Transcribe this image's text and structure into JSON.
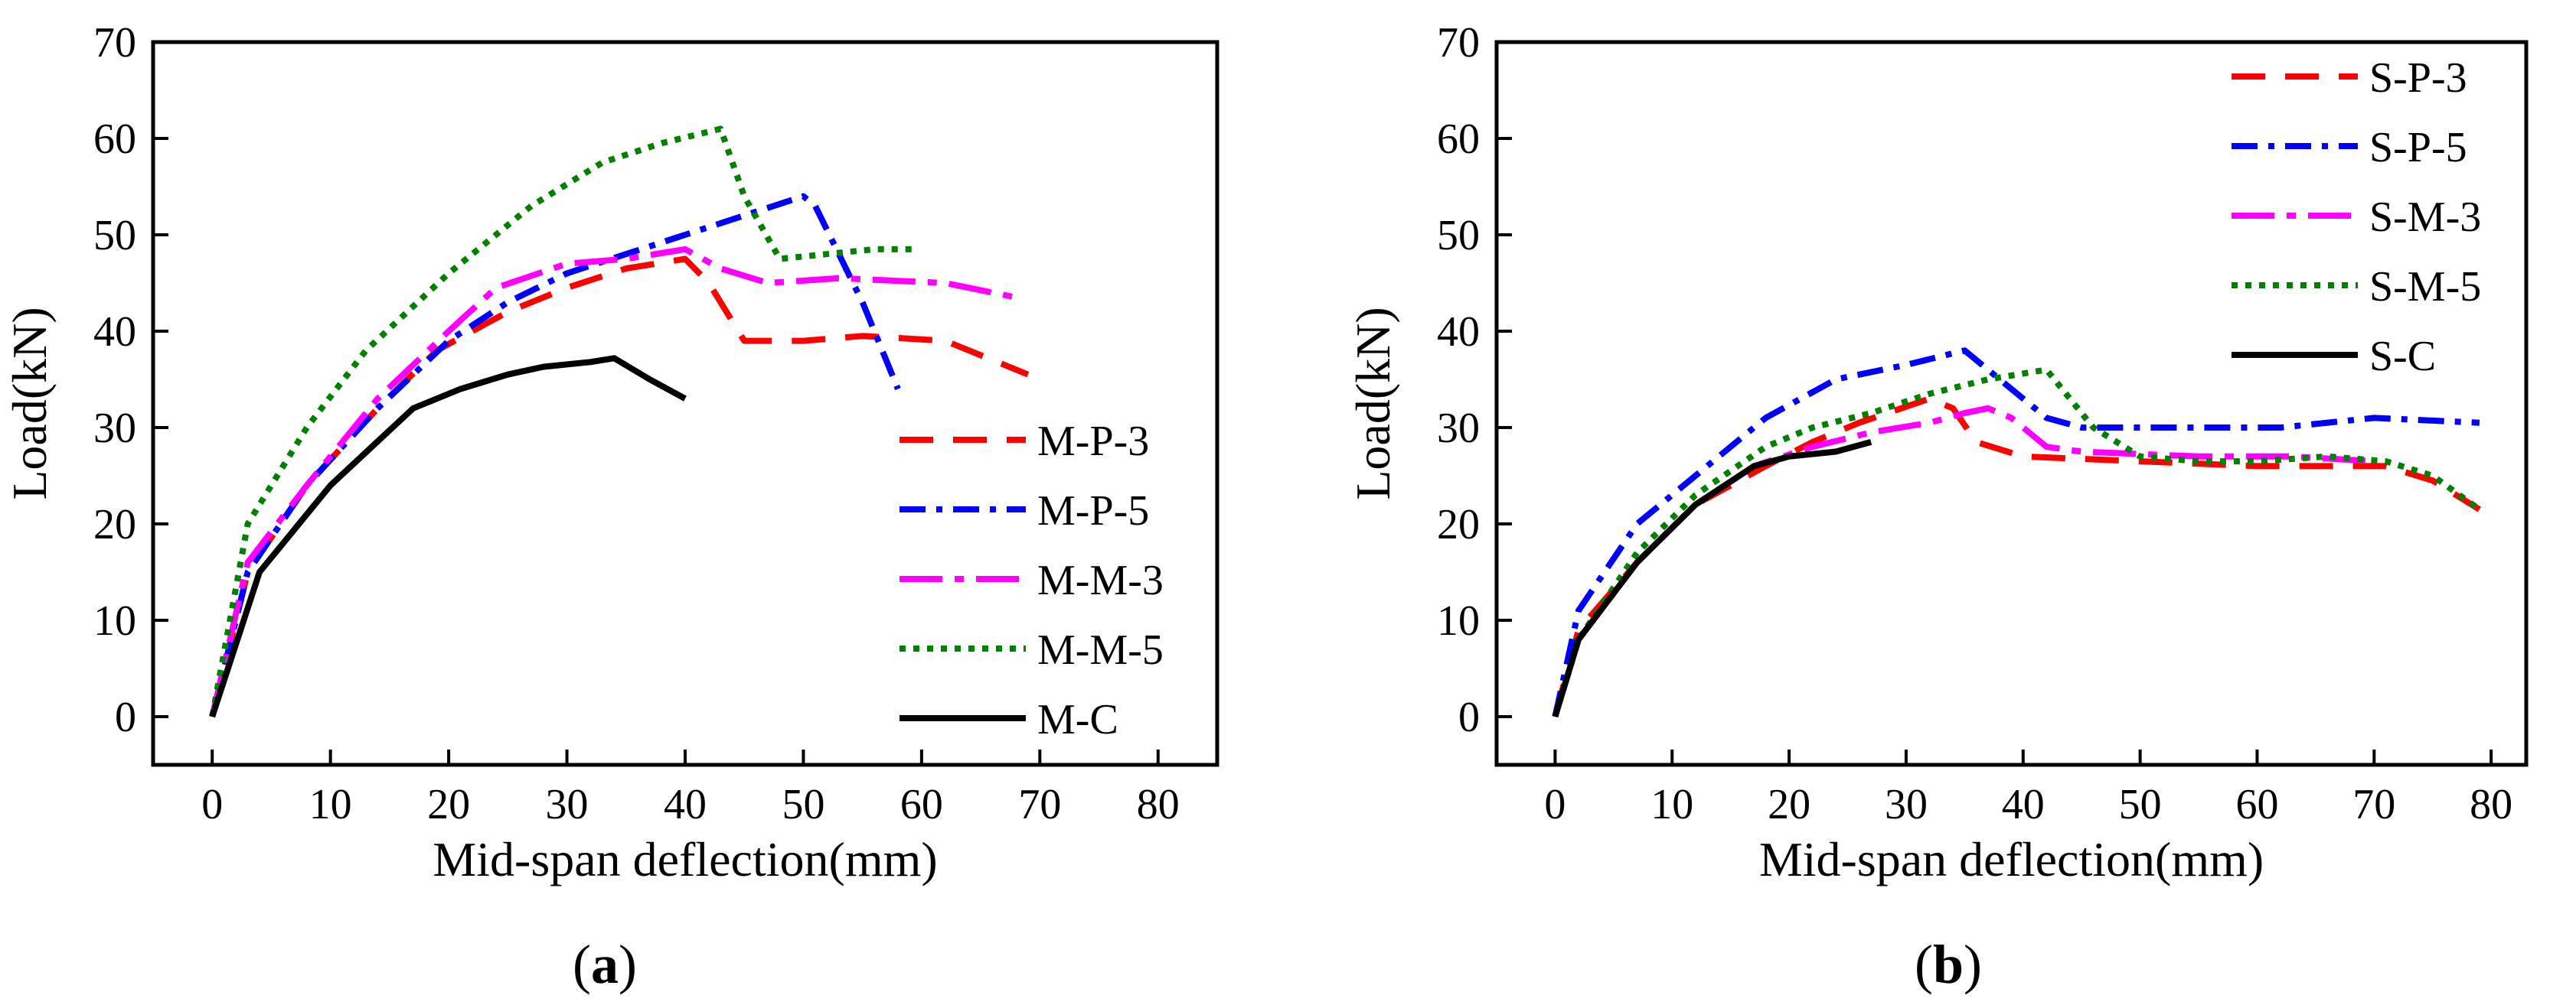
{
  "chart_data": [
    {
      "type": "line",
      "panel": "a",
      "xlabel": "Mid-span deflection(mm)",
      "ylabel": "Load(kN)",
      "xlim": [
        -5,
        85
      ],
      "ylim": [
        -5,
        70
      ],
      "xticks": [
        0,
        10,
        20,
        30,
        40,
        50,
        60,
        70,
        80
      ],
      "yticks": [
        0,
        10,
        20,
        30,
        40,
        50,
        60,
        70
      ],
      "legend_position": "lower-right",
      "series": [
        {
          "name": "M-P-3",
          "color": "#ff0000",
          "dash": "dash",
          "x": [
            0,
            3,
            8,
            14,
            19,
            25,
            30,
            35,
            40,
            42,
            45,
            50,
            55,
            62,
            66,
            69
          ],
          "y": [
            0,
            15,
            24,
            32,
            38,
            42,
            44.5,
            46.5,
            47.5,
            45,
            39,
            39,
            39.5,
            39,
            37,
            35.5
          ]
        },
        {
          "name": "M-P-5",
          "color": "#0000ff",
          "dash": "dashdot",
          "x": [
            0,
            3,
            8,
            14,
            20,
            25,
            30,
            35,
            40,
            45,
            50,
            51,
            55,
            58
          ],
          "y": [
            0,
            15,
            24,
            32,
            39,
            43,
            46,
            48,
            50,
            52,
            54,
            53,
            43,
            34
          ]
        },
        {
          "name": "M-M-3",
          "color": "#ff00ff",
          "dash": "longdashdot",
          "x": [
            0,
            3,
            8,
            14,
            20,
            24,
            30,
            35,
            40,
            43,
            47,
            53,
            62,
            68
          ],
          "y": [
            0,
            16,
            24,
            33,
            40,
            44.5,
            47,
            47.5,
            48.5,
            46.5,
            45,
            45.5,
            45,
            43.5
          ]
        },
        {
          "name": "M-M-5",
          "color": "#008000",
          "dash": "dot",
          "x": [
            0,
            3,
            8,
            13,
            20,
            27,
            33,
            38,
            43,
            45,
            48,
            52,
            56,
            59.5
          ],
          "y": [
            0,
            20,
            30,
            38,
            46,
            53,
            57.5,
            59.5,
            61,
            54,
            47.5,
            48,
            48.5,
            48.5
          ]
        },
        {
          "name": "M-C",
          "color": "#000000",
          "dash": "solid",
          "x": [
            0,
            4,
            10,
            17,
            21,
            25,
            28,
            32,
            34,
            37,
            40
          ],
          "y": [
            0,
            15,
            24,
            32,
            34,
            35.5,
            36.3,
            36.8,
            37.2,
            35,
            33
          ]
        }
      ]
    },
    {
      "type": "line",
      "panel": "b",
      "xlabel": "Mid-span deflection(mm)",
      "ylabel": "Load(kN)",
      "xlim": [
        -5,
        83
      ],
      "ylim": [
        -5,
        70
      ],
      "xticks": [
        0,
        10,
        20,
        30,
        40,
        50,
        60,
        70,
        80
      ],
      "yticks": [
        0,
        10,
        20,
        30,
        40,
        50,
        60,
        70
      ],
      "legend_position": "upper-right",
      "series": [
        {
          "name": "S-P-3",
          "color": "#ff0000",
          "dash": "dash",
          "x": [
            0,
            2,
            7,
            12,
            18,
            22,
            26,
            32,
            34,
            36,
            40,
            50,
            60,
            71,
            75,
            79
          ],
          "y": [
            0,
            9,
            16,
            22,
            26,
            28.5,
            30.5,
            33,
            32,
            28.5,
            27,
            26.5,
            26,
            26,
            24.5,
            21.5
          ]
        },
        {
          "name": "S-P-5",
          "color": "#0000ff",
          "dash": "dashdot",
          "x": [
            0,
            2,
            7,
            12,
            18,
            24,
            30,
            35,
            38,
            42,
            45,
            53,
            62,
            70,
            79
          ],
          "y": [
            0,
            11,
            20,
            25,
            31,
            35,
            36.5,
            38,
            35,
            31,
            30,
            30,
            30,
            31,
            30.5
          ]
        },
        {
          "name": "S-M-3",
          "color": "#ff00ff",
          "dash": "longdashdot",
          "x": [
            0,
            2,
            7,
            12,
            17,
            22,
            27,
            32,
            35,
            37,
            39,
            42,
            45,
            55,
            63,
            70
          ],
          "y": [
            0,
            8,
            16,
            22,
            26,
            28,
            29.5,
            30.5,
            31.5,
            32,
            31,
            28,
            27.5,
            27,
            27,
            26.5
          ]
        },
        {
          "name": "S-M-5",
          "color": "#008000",
          "dash": "dot",
          "x": [
            0,
            2,
            7,
            12,
            18,
            22,
            27,
            32,
            37,
            42,
            46,
            50,
            55,
            60,
            66,
            71,
            75,
            79
          ],
          "y": [
            0,
            8,
            17,
            23,
            28,
            30,
            31.5,
            33.5,
            35,
            36,
            30,
            27,
            26.5,
            26.5,
            27,
            26.5,
            25,
            21.5
          ]
        },
        {
          "name": "S-C",
          "color": "#000000",
          "dash": "solid",
          "x": [
            0,
            2,
            7,
            12,
            17,
            20,
            24,
            27
          ],
          "y": [
            0,
            8,
            16,
            22,
            26,
            27,
            27.5,
            28.5
          ]
        }
      ]
    }
  ],
  "panel_labels": [
    "a",
    "b"
  ]
}
